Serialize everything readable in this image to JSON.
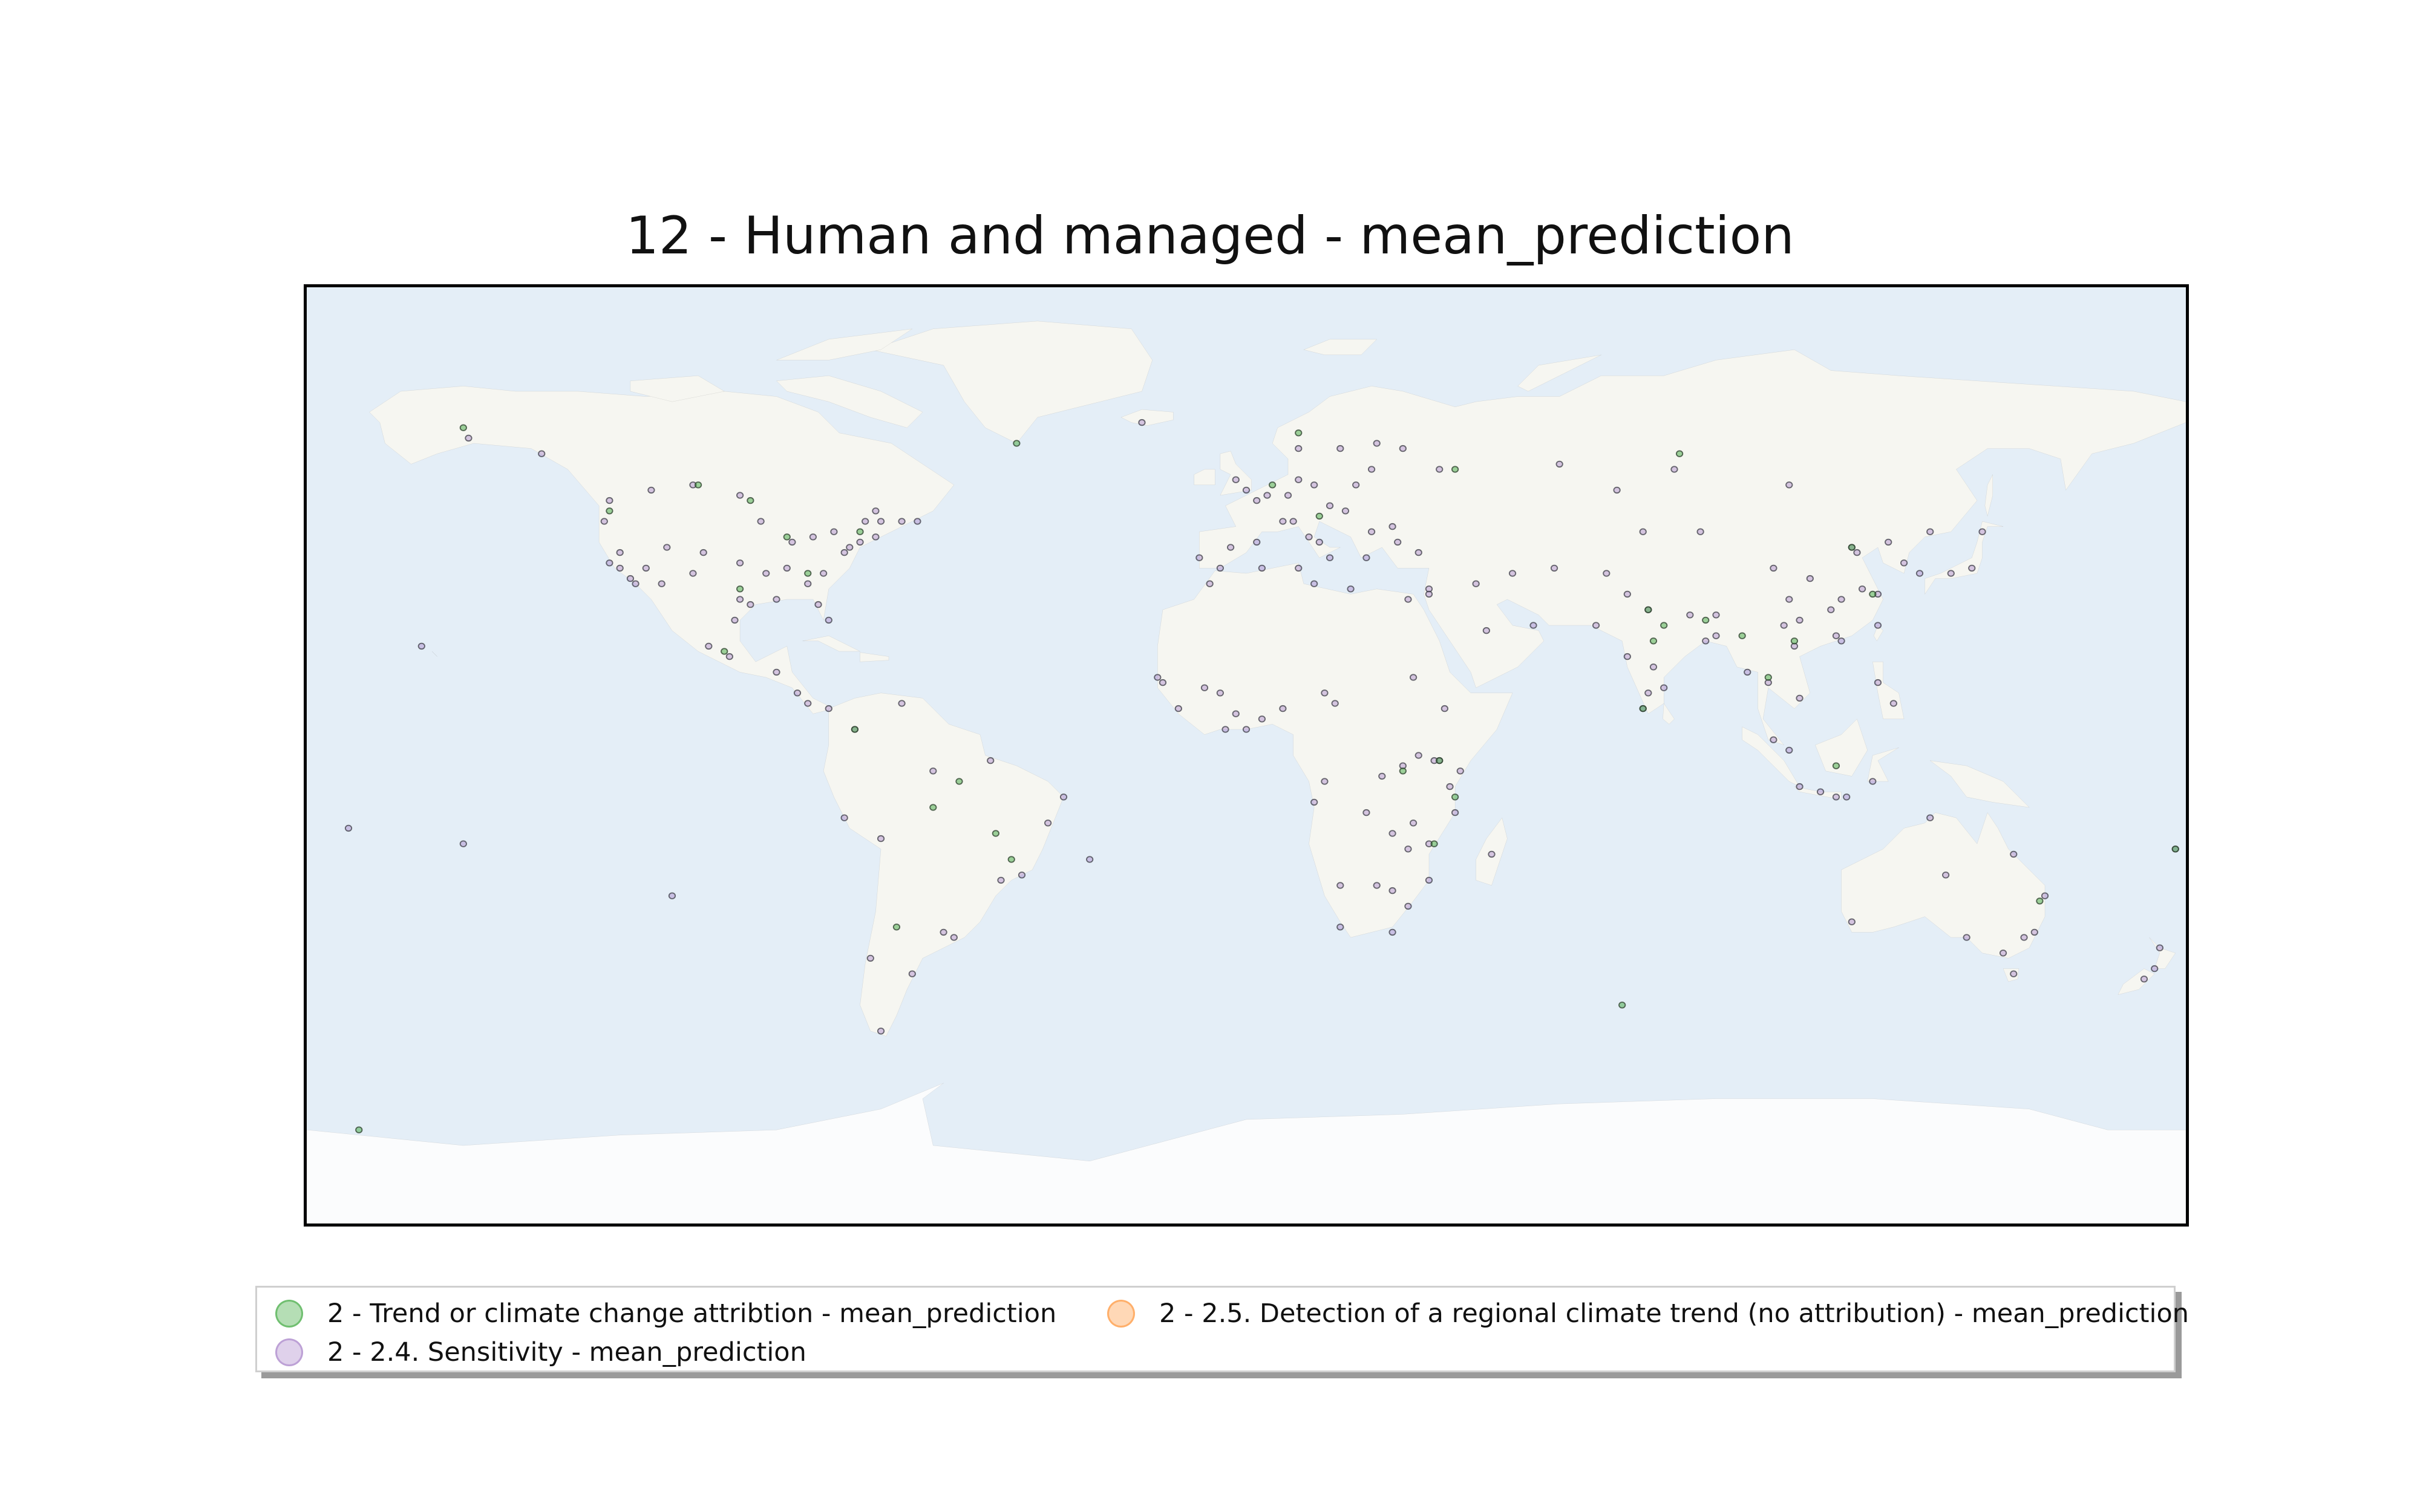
{
  "title": "12 - Human and managed - mean_prediction",
  "legend": [
    {
      "label": "2 - Trend or climate change attribtion - mean_prediction",
      "color": "#2ca02c"
    },
    {
      "label": "2 - 2.5. Detection of a regional climate trend (no attribution) - mean_prediction",
      "color": "#ff7f0e"
    },
    {
      "label": "2 - 2.4. Sensitivity - mean_prediction",
      "color": "#9467bd"
    }
  ],
  "colors": {
    "ocean": "#e4eef7",
    "land": "#f6f6f1",
    "ice": "#fbfcfd",
    "coast": "#7a7a7a"
  },
  "points": {
    "trend": [
      [
        -150,
        63
      ],
      [
        -122,
        47
      ],
      [
        -105,
        52
      ],
      [
        -95,
        49
      ],
      [
        -88,
        42
      ],
      [
        -74,
        43
      ],
      [
        -100,
        20
      ],
      [
        -75,
        5
      ],
      [
        -60,
        -10
      ],
      [
        -48,
        -15
      ],
      [
        -67,
        -33
      ],
      [
        5,
        52
      ],
      [
        14,
        46
      ],
      [
        30,
        -3
      ],
      [
        37,
        -1
      ],
      [
        77,
        28
      ],
      [
        78,
        22
      ],
      [
        88,
        26
      ],
      [
        95,
        23
      ],
      [
        100,
        15
      ],
      [
        105,
        22
      ],
      [
        120,
        31
      ],
      [
        36,
        -17
      ],
      [
        40,
        -8
      ],
      [
        76,
        9
      ],
      [
        113,
        -2
      ],
      [
        -45,
        -20
      ],
      [
        -170,
        -72
      ],
      [
        72,
        -48
      ],
      [
        178,
        -18
      ],
      [
        -55,
        -5
      ],
      [
        83,
        58
      ],
      [
        10,
        62
      ],
      [
        152,
        -28
      ],
      [
        -97,
        32
      ],
      [
        -84,
        35
      ],
      [
        116,
        40
      ],
      [
        80,
        25
      ],
      [
        40,
        55
      ],
      [
        -44,
        60
      ]
    ],
    "detection": [],
    "sensitivity": [
      [
        -122,
        37
      ],
      [
        -118,
        34
      ],
      [
        -117,
        33
      ],
      [
        -112,
        33
      ],
      [
        -106,
        35
      ],
      [
        -104,
        39
      ],
      [
        -97,
        30
      ],
      [
        -95,
        29
      ],
      [
        -90,
        30
      ],
      [
        -87,
        41
      ],
      [
        -84,
        33
      ],
      [
        -80,
        26
      ],
      [
        -81,
        35
      ],
      [
        -77,
        39
      ],
      [
        -76,
        40
      ],
      [
        -74,
        41
      ],
      [
        -71,
        42
      ],
      [
        -79,
        43
      ],
      [
        -83,
        42
      ],
      [
        -93,
        45
      ],
      [
        -97,
        37
      ],
      [
        -111,
        40
      ],
      [
        -115,
        36
      ],
      [
        -120,
        39
      ],
      [
        -123,
        45
      ],
      [
        -122,
        49
      ],
      [
        -114,
        51
      ],
      [
        -106,
        52
      ],
      [
        -97,
        50
      ],
      [
        -73,
        45
      ],
      [
        -71,
        47
      ],
      [
        -66,
        45
      ],
      [
        -63,
        45
      ],
      [
        -99,
        19
      ],
      [
        -103,
        21
      ],
      [
        -90,
        16
      ],
      [
        -84,
        10
      ],
      [
        -80,
        9
      ],
      [
        -75,
        5
      ],
      [
        -77,
        -12
      ],
      [
        -70,
        -16
      ],
      [
        -58,
        -34
      ],
      [
        -56,
        -35
      ],
      [
        -47,
        -24
      ],
      [
        -43,
        -23
      ],
      [
        -38,
        -13
      ],
      [
        -35,
        -8
      ],
      [
        -49,
        -1
      ],
      [
        -60,
        -3
      ],
      [
        -66,
        10
      ],
      [
        -72,
        -39
      ],
      [
        -70,
        -53
      ],
      [
        -64,
        -42
      ],
      [
        -158,
        21
      ],
      [
        -149,
        61
      ],
      [
        -135,
        58
      ],
      [
        0,
        51
      ],
      [
        -2,
        53
      ],
      [
        2,
        49
      ],
      [
        4,
        50
      ],
      [
        8,
        50
      ],
      [
        10,
        53
      ],
      [
        13,
        52
      ],
      [
        16,
        48
      ],
      [
        19,
        47
      ],
      [
        21,
        52
      ],
      [
        24,
        55
      ],
      [
        18,
        59
      ],
      [
        10,
        59
      ],
      [
        25,
        60
      ],
      [
        30,
        59
      ],
      [
        37,
        55
      ],
      [
        -3,
        40
      ],
      [
        -9,
        38
      ],
      [
        2,
        41
      ],
      [
        7,
        45
      ],
      [
        9,
        45
      ],
      [
        12,
        42
      ],
      [
        14,
        41
      ],
      [
        16,
        38
      ],
      [
        23,
        38
      ],
      [
        24,
        43
      ],
      [
        28,
        44
      ],
      [
        29,
        41
      ],
      [
        33,
        39
      ],
      [
        35,
        32
      ],
      [
        35,
        31
      ],
      [
        31,
        30
      ],
      [
        44,
        33
      ],
      [
        51,
        35
      ],
      [
        46,
        24
      ],
      [
        55,
        25
      ],
      [
        59,
        36
      ],
      [
        69,
        35
      ],
      [
        67,
        25
      ],
      [
        73,
        31
      ],
      [
        77,
        28
      ],
      [
        73,
        19
      ],
      [
        78,
        17
      ],
      [
        80,
        13
      ],
      [
        77,
        12
      ],
      [
        76,
        9
      ],
      [
        88,
        22
      ],
      [
        85,
        27
      ],
      [
        90,
        23
      ],
      [
        90,
        27
      ],
      [
        96,
        16
      ],
      [
        100,
        14
      ],
      [
        105,
        21
      ],
      [
        106,
        11
      ],
      [
        101,
        3
      ],
      [
        104,
        1
      ],
      [
        106,
        -6
      ],
      [
        110,
        -7
      ],
      [
        113,
        -8
      ],
      [
        115,
        -8
      ],
      [
        120,
        -5
      ],
      [
        121,
        14
      ],
      [
        124,
        10
      ],
      [
        114,
        22
      ],
      [
        113,
        23
      ],
      [
        121,
        25
      ],
      [
        121,
        31
      ],
      [
        118,
        32
      ],
      [
        114,
        30
      ],
      [
        112,
        28
      ],
      [
        116,
        40
      ],
      [
        117,
        39
      ],
      [
        123,
        41
      ],
      [
        126,
        37
      ],
      [
        129,
        35
      ],
      [
        135,
        35
      ],
      [
        139,
        36
      ],
      [
        141,
        43
      ],
      [
        104,
        30
      ],
      [
        108,
        34
      ],
      [
        103,
        25
      ],
      [
        106,
        26
      ],
      [
        87,
        43
      ],
      [
        101,
        36
      ],
      [
        71,
        51
      ],
      [
        76,
        43
      ],
      [
        60,
        56
      ],
      [
        82,
        55
      ],
      [
        104,
        52
      ],
      [
        131,
        43
      ],
      [
        3,
        7
      ],
      [
        0,
        5
      ],
      [
        -4,
        5
      ],
      [
        -8,
        13
      ],
      [
        -16,
        14
      ],
      [
        -17,
        15
      ],
      [
        -13,
        9
      ],
      [
        7,
        9
      ],
      [
        15,
        12
      ],
      [
        32,
        15
      ],
      [
        38,
        9
      ],
      [
        36,
        -1
      ],
      [
        37,
        -1
      ],
      [
        39,
        -6
      ],
      [
        30,
        -2
      ],
      [
        33,
        0
      ],
      [
        28,
        -15
      ],
      [
        31,
        -18
      ],
      [
        25,
        -25
      ],
      [
        28,
        -26
      ],
      [
        31,
        -29
      ],
      [
        18,
        -33
      ],
      [
        28,
        -34
      ],
      [
        47,
        -19
      ],
      [
        35,
        -24
      ],
      [
        13,
        -9
      ],
      [
        15,
        -5
      ],
      [
        18,
        -25
      ],
      [
        35,
        -17
      ],
      [
        41,
        -3
      ],
      [
        40,
        -11
      ],
      [
        32,
        -13
      ],
      [
        -7,
        33
      ],
      [
        3,
        36
      ],
      [
        10,
        36
      ],
      [
        13,
        33
      ],
      [
        20,
        32
      ],
      [
        151,
        -34
      ],
      [
        153,
        -27
      ],
      [
        145,
        -38
      ],
      [
        138,
        -35
      ],
      [
        116,
        -32
      ],
      [
        131,
        -12
      ],
      [
        147,
        -19
      ],
      [
        149,
        -35
      ],
      [
        147,
        -42
      ],
      [
        175,
        -37
      ],
      [
        174,
        -41
      ],
      [
        172,
        -43
      ],
      [
        178,
        -18
      ],
      [
        -172,
        -14
      ],
      [
        -150,
        -17
      ],
      [
        134,
        -23
      ],
      [
        -5,
        36
      ],
      [
        -20,
        64
      ],
      [
        -30,
        -20
      ],
      [
        -110,
        -27
      ],
      [
        -70,
        45
      ],
      [
        -88,
        36
      ],
      [
        -98,
        26
      ],
      [
        -86,
        12
      ],
      [
        -5,
        12
      ],
      [
        -2,
        8
      ],
      [
        17,
        10
      ],
      [
        23,
        -11
      ],
      [
        26,
        -4
      ],
      [
        -120,
        36
      ],
      [
        -92,
        35
      ],
      [
        -82,
        29
      ]
    ]
  }
}
